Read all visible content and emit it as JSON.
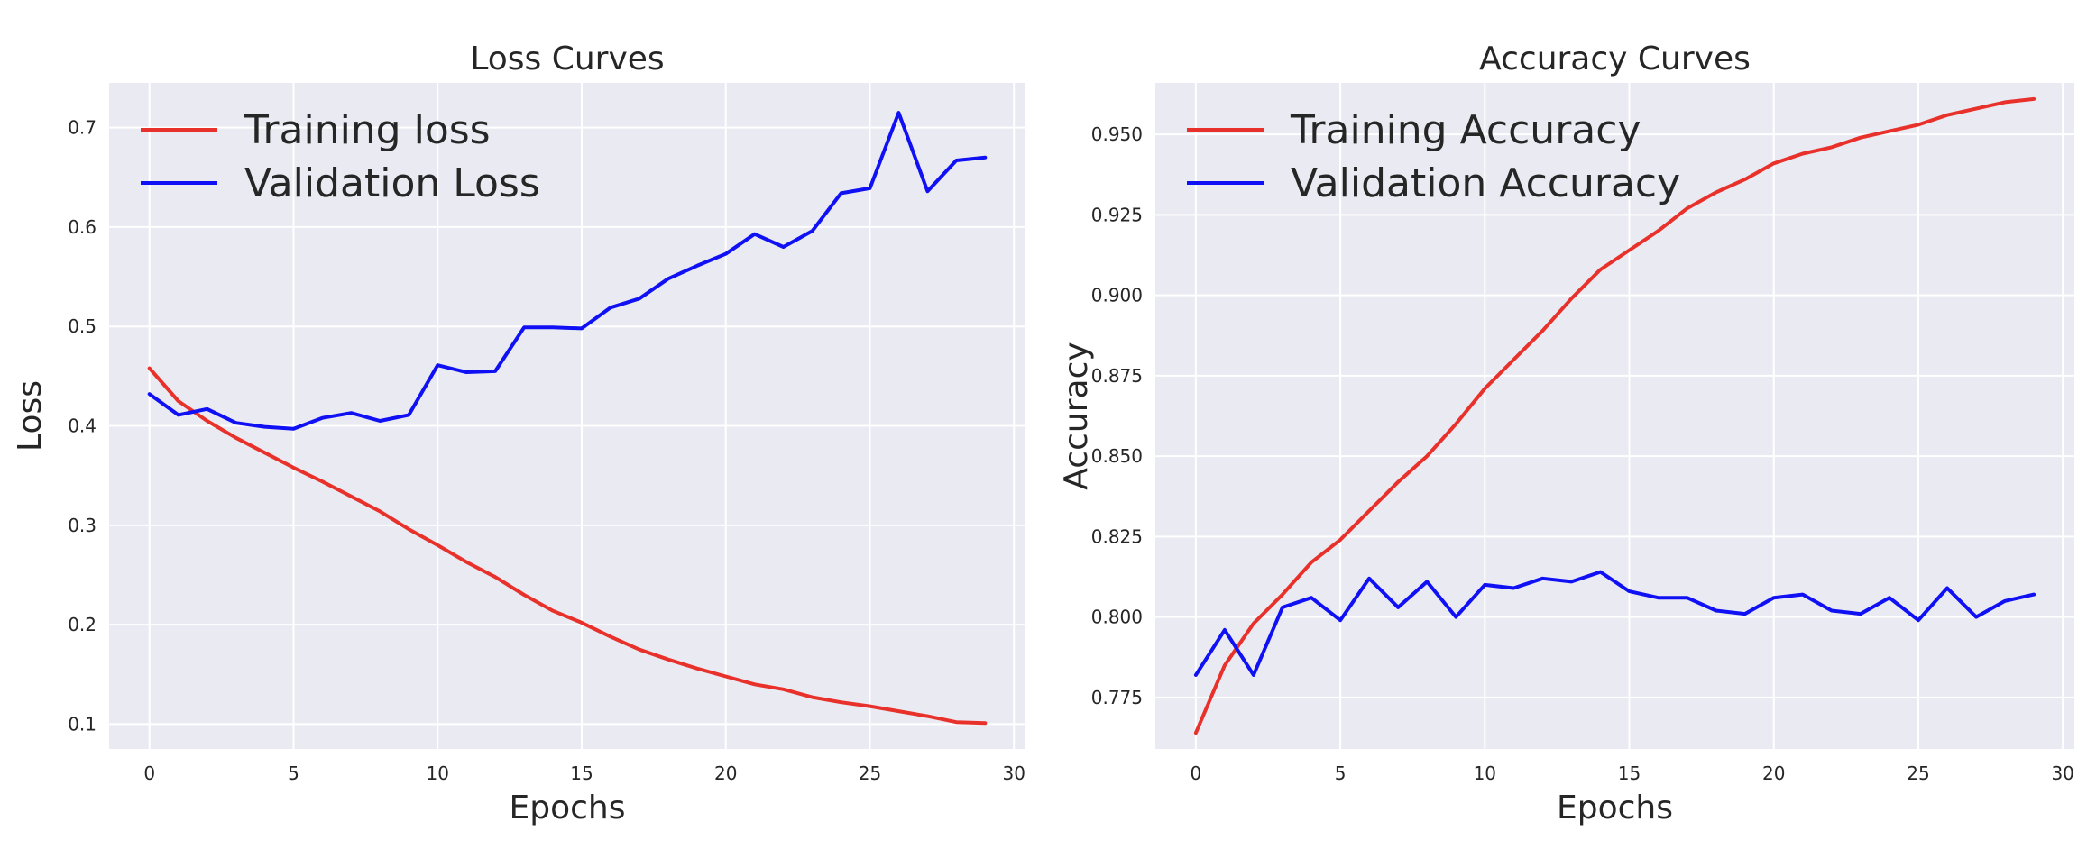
{
  "chart_data": [
    {
      "type": "line",
      "title": "Loss Curves",
      "xlabel": "Epochs",
      "ylabel": "Loss",
      "xlim": [
        -1.4,
        30.4
      ],
      "ylim": [
        0.075,
        0.745
      ],
      "xticks": [
        0,
        5,
        10,
        15,
        20,
        25,
        30
      ],
      "yticks": [
        0.1,
        0.2,
        0.3,
        0.4,
        0.5,
        0.6,
        0.7
      ],
      "grid": true,
      "legend_position": "top-left",
      "x": [
        0,
        1,
        2,
        3,
        4,
        5,
        6,
        7,
        8,
        9,
        10,
        11,
        12,
        13,
        14,
        15,
        16,
        17,
        18,
        19,
        20,
        21,
        22,
        23,
        24,
        25,
        26,
        27,
        28,
        29
      ],
      "series": [
        {
          "name": "Training loss",
          "color": "#E8312A",
          "values": [
            0.458,
            0.425,
            0.405,
            0.388,
            0.373,
            0.358,
            0.344,
            0.329,
            0.314,
            0.296,
            0.28,
            0.263,
            0.248,
            0.23,
            0.214,
            0.202,
            0.188,
            0.175,
            0.165,
            0.156,
            0.148,
            0.14,
            0.135,
            0.127,
            0.122,
            0.118,
            0.113,
            0.108,
            0.102,
            0.101
          ]
        },
        {
          "name": "Validation Loss",
          "color": "#1010F5",
          "values": [
            0.432,
            0.411,
            0.417,
            0.403,
            0.399,
            0.397,
            0.408,
            0.413,
            0.405,
            0.411,
            0.461,
            0.454,
            0.455,
            0.499,
            0.499,
            0.498,
            0.519,
            0.528,
            0.548,
            0.561,
            0.573,
            0.593,
            0.58,
            0.596,
            0.634,
            0.639,
            0.715,
            0.636,
            0.667,
            0.67
          ]
        }
      ]
    },
    {
      "type": "line",
      "title": "Accuracy Curves",
      "xlabel": "Epochs",
      "ylabel": "Accuracy",
      "xlim": [
        -1.4,
        30.4
      ],
      "ylim": [
        0.759,
        0.966
      ],
      "xticks": [
        0,
        5,
        10,
        15,
        20,
        25,
        30
      ],
      "yticks": [
        0.775,
        0.8,
        0.825,
        0.85,
        0.875,
        0.9,
        0.925,
        0.95
      ],
      "ytick_labels": [
        "0.775",
        "0.800",
        "0.825",
        "0.850",
        "0.875",
        "0.900",
        "0.925",
        "0.950"
      ],
      "grid": true,
      "legend_position": "top-left",
      "x": [
        0,
        1,
        2,
        3,
        4,
        5,
        6,
        7,
        8,
        9,
        10,
        11,
        12,
        13,
        14,
        15,
        16,
        17,
        18,
        19,
        20,
        21,
        22,
        23,
        24,
        25,
        26,
        27,
        28,
        29
      ],
      "series": [
        {
          "name": "Training Accuracy",
          "color": "#E8312A",
          "values": [
            0.764,
            0.785,
            0.798,
            0.807,
            0.817,
            0.824,
            0.833,
            0.842,
            0.85,
            0.86,
            0.871,
            0.88,
            0.889,
            0.899,
            0.908,
            0.914,
            0.92,
            0.927,
            0.932,
            0.936,
            0.941,
            0.944,
            0.946,
            0.949,
            0.951,
            0.953,
            0.956,
            0.958,
            0.96,
            0.961
          ]
        },
        {
          "name": "Validation Accuracy",
          "color": "#1010F5",
          "values": [
            0.782,
            0.796,
            0.782,
            0.803,
            0.806,
            0.799,
            0.812,
            0.803,
            0.811,
            0.8,
            0.81,
            0.809,
            0.812,
            0.811,
            0.814,
            0.808,
            0.806,
            0.806,
            0.802,
            0.801,
            0.806,
            0.807,
            0.802,
            0.801,
            0.806,
            0.799,
            0.809,
            0.8,
            0.805,
            0.807
          ]
        }
      ]
    }
  ]
}
